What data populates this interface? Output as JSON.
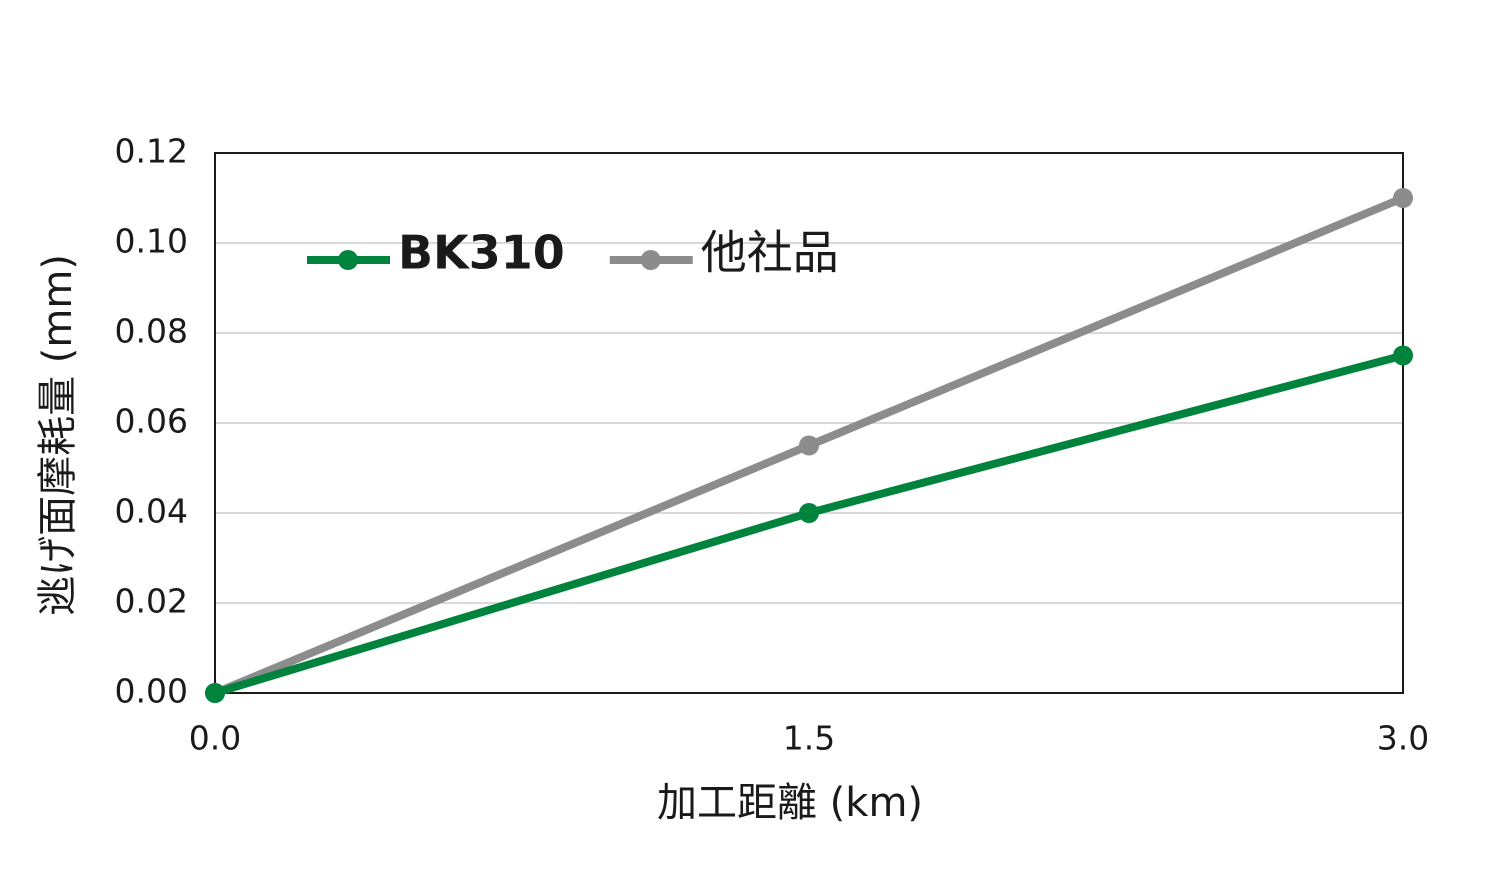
{
  "chart_data": {
    "type": "line",
    "x_label": "加工距離 (km)",
    "y_label": "逃げ面摩耗量 (mm)",
    "x": [
      0,
      1.5,
      3
    ],
    "series": [
      {
        "name": "BK310",
        "color": "#00843d",
        "values": [
          0,
          0.04,
          0.075
        ]
      },
      {
        "name": "他社品",
        "color": "#8c8c8c",
        "values": [
          0,
          0.055,
          0.11
        ]
      }
    ],
    "xlim": [
      0,
      3
    ],
    "xticks": [
      {
        "value": 0,
        "label": "0.0"
      },
      1.5,
      {
        "value": 3,
        "label": "3.0"
      }
    ],
    "ylim": [
      0,
      0.12
    ],
    "yticks": [
      {
        "value": 0,
        "label": "0.00"
      },
      {
        "value": 0.02,
        "label": "0.02"
      },
      {
        "value": 0.04,
        "label": "0.04"
      },
      {
        "value": 0.06,
        "label": "0.06"
      },
      {
        "value": 0.08,
        "label": "0.08"
      },
      {
        "value": 0.1,
        "label": "0.10"
      },
      {
        "value": 0.12,
        "label": "0.12"
      }
    ],
    "grid": true,
    "legend_position": "upper left"
  }
}
